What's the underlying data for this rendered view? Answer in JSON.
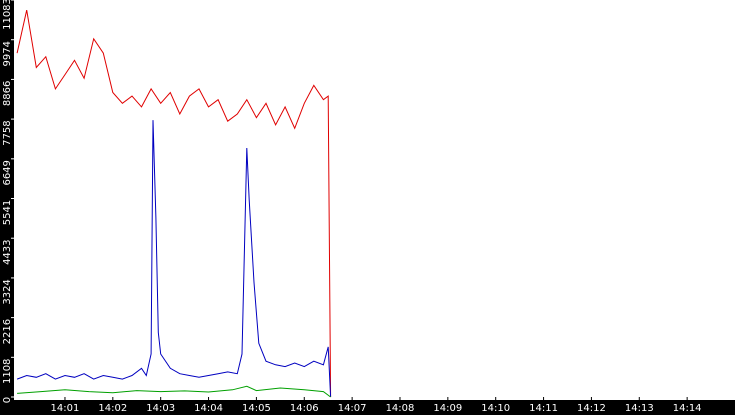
{
  "chart_data": {
    "type": "line",
    "xlim": [
      -0.065,
      15
    ],
    "xticks": [
      {
        "value": 1,
        "label": "14:01"
      },
      {
        "value": 2,
        "label": "14:02"
      },
      {
        "value": 3,
        "label": "14:03"
      },
      {
        "value": 4,
        "label": "14:04"
      },
      {
        "value": 5,
        "label": "14:05"
      },
      {
        "value": 6,
        "label": "14:06"
      },
      {
        "value": 7,
        "label": "14:07"
      },
      {
        "value": 8,
        "label": "14:08"
      },
      {
        "value": 9,
        "label": "14:09"
      },
      {
        "value": 10,
        "label": "14:10"
      },
      {
        "value": 11,
        "label": "14:11"
      },
      {
        "value": 12,
        "label": "14:12"
      },
      {
        "value": 13,
        "label": "14:13"
      },
      {
        "value": 14,
        "label": "14:14"
      }
    ],
    "ylim": [
      0,
      11083
    ],
    "yticks": [
      0,
      1108,
      2216,
      3324,
      4433,
      5541,
      6649,
      7758,
      8866,
      9974,
      11083
    ],
    "series": [
      {
        "color": "#e00000",
        "x": [
          0,
          0.2,
          0.4,
          0.6,
          0.8,
          1.0,
          1.2,
          1.4,
          1.6,
          1.8,
          2.0,
          2.2,
          2.4,
          2.6,
          2.8,
          3.0,
          3.2,
          3.4,
          3.6,
          3.8,
          4.0,
          4.2,
          4.4,
          4.6,
          4.8,
          5.0,
          5.2,
          5.4,
          5.6,
          5.8,
          6.0,
          6.2,
          6.4,
          6.5,
          6.55
        ],
        "values": [
          9600,
          10800,
          9200,
          9500,
          8600,
          9000,
          9400,
          8900,
          10000,
          9600,
          8500,
          8200,
          8400,
          8100,
          8600,
          8200,
          8500,
          7900,
          8400,
          8600,
          8100,
          8300,
          7700,
          7900,
          8300,
          7800,
          8200,
          7600,
          8100,
          7500,
          8200,
          8700,
          8300,
          8400,
          0
        ]
      },
      {
        "color": "#0000c0",
        "x": [
          0,
          0.2,
          0.4,
          0.6,
          0.8,
          1.0,
          1.2,
          1.4,
          1.6,
          1.8,
          2.0,
          2.2,
          2.4,
          2.6,
          2.7,
          2.8,
          2.84,
          2.9,
          2.95,
          3.0,
          3.2,
          3.4,
          3.6,
          3.8,
          4.0,
          4.2,
          4.4,
          4.6,
          4.7,
          4.8,
          4.85,
          4.95,
          5.05,
          5.2,
          5.4,
          5.6,
          5.8,
          6.0,
          6.2,
          6.4,
          6.5,
          6.55
        ],
        "values": [
          500,
          600,
          550,
          650,
          500,
          600,
          550,
          650,
          500,
          600,
          550,
          500,
          600,
          800,
          600,
          1200,
          7730,
          5000,
          1800,
          1200,
          800,
          650,
          600,
          550,
          600,
          650,
          700,
          650,
          1200,
          6950,
          5500,
          3200,
          1500,
          1000,
          900,
          850,
          950,
          850,
          1000,
          900,
          1400,
          0
        ]
      },
      {
        "color": "#00a000",
        "x": [
          0,
          0.5,
          1,
          1.5,
          2,
          2.5,
          3,
          3.5,
          4,
          4.5,
          4.8,
          5,
          5.5,
          6,
          6.4,
          6.55
        ],
        "values": [
          100,
          150,
          200,
          150,
          120,
          180,
          150,
          170,
          140,
          200,
          300,
          180,
          250,
          200,
          150,
          0
        ]
      }
    ]
  }
}
